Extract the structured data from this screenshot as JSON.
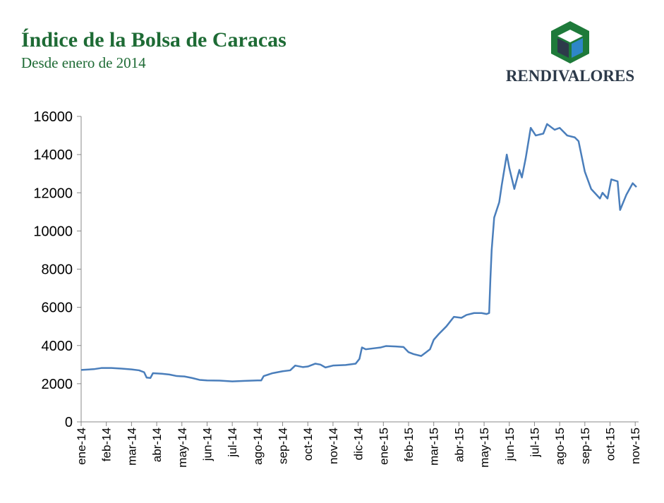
{
  "chart_data": {
    "type": "line",
    "title": "Índice de la Bolsa de Caracas",
    "subtitle": "Desde enero de 2014",
    "series": [
      {
        "color": "#4a7ebb",
        "x": [
          0,
          0.5,
          0.8,
          1.2,
          1.6,
          2.0,
          2.3,
          2.5,
          2.6,
          2.75,
          2.85,
          3.2,
          3.5,
          3.8,
          4.1,
          4.4,
          4.7,
          5.0,
          5.5,
          6.0,
          6.5,
          7.0,
          7.15,
          7.25,
          7.6,
          8.0,
          8.3,
          8.5,
          8.8,
          9.0,
          9.3,
          9.5,
          9.7,
          10.0,
          10.5,
          10.9,
          11.05,
          11.15,
          11.3,
          11.6,
          11.9,
          12.1,
          12.5,
          12.8,
          13.0,
          13.2,
          13.5,
          13.7,
          13.85,
          14.0,
          14.2,
          14.5,
          14.8,
          15.1,
          15.3,
          15.6,
          15.9,
          16.1,
          16.2,
          16.25,
          16.3,
          16.4,
          16.6,
          16.7,
          16.9,
          17.0,
          17.2,
          17.4,
          17.5,
          17.65,
          17.85,
          18.05,
          18.35,
          18.5,
          18.8,
          19.0,
          19.3,
          19.6,
          19.75,
          20.0,
          20.25,
          20.6,
          20.7,
          20.9,
          21.05,
          21.3,
          21.4,
          21.65,
          21.9,
          22.05
        ],
        "values": [
          2720,
          2760,
          2820,
          2820,
          2790,
          2750,
          2700,
          2600,
          2320,
          2300,
          2550,
          2520,
          2480,
          2400,
          2380,
          2300,
          2200,
          2170,
          2160,
          2120,
          2150,
          2170,
          2170,
          2400,
          2550,
          2650,
          2700,
          2950,
          2870,
          2900,
          3050,
          3000,
          2850,
          2950,
          2980,
          3050,
          3300,
          3900,
          3800,
          3850,
          3900,
          3970,
          3950,
          3920,
          3650,
          3550,
          3450,
          3650,
          3800,
          4300,
          4600,
          5000,
          5500,
          5450,
          5600,
          5700,
          5700,
          5650,
          5700,
          7500,
          9000,
          10700,
          11500,
          12400,
          14000,
          13300,
          12200,
          13200,
          12800,
          13800,
          15400,
          15000,
          15100,
          15600,
          15300,
          15400,
          15000,
          14900,
          14700,
          13100,
          12200,
          11700,
          12000,
          11700,
          12700,
          12600,
          11100,
          11900,
          12500,
          12300
        ]
      }
    ],
    "xlim": [
      0,
      22.05
    ],
    "xticks": [
      {
        "value": 0,
        "label": "ene-14"
      },
      {
        "value": 1,
        "label": "feb-14"
      },
      {
        "value": 2,
        "label": "mar-14"
      },
      {
        "value": 3,
        "label": "abr-14"
      },
      {
        "value": 4,
        "label": "may-14"
      },
      {
        "value": 5,
        "label": "jun-14"
      },
      {
        "value": 6,
        "label": "jul-14"
      },
      {
        "value": 7,
        "label": "ago-14"
      },
      {
        "value": 8,
        "label": "sep-14"
      },
      {
        "value": 9,
        "label": "oct-14"
      },
      {
        "value": 10,
        "label": "nov-14"
      },
      {
        "value": 11,
        "label": "dic-14"
      },
      {
        "value": 12,
        "label": "ene-15"
      },
      {
        "value": 13,
        "label": "feb-15"
      },
      {
        "value": 14,
        "label": "mar-15"
      },
      {
        "value": 15,
        "label": "abr-15"
      },
      {
        "value": 16,
        "label": "may-15"
      },
      {
        "value": 17,
        "label": "jun-15"
      },
      {
        "value": 18,
        "label": "jul-15"
      },
      {
        "value": 19,
        "label": "ago-15"
      },
      {
        "value": 20,
        "label": "sep-15"
      },
      {
        "value": 21,
        "label": "oct-15"
      },
      {
        "value": 22,
        "label": "nov-15"
      }
    ],
    "ylim": [
      0,
      16000
    ],
    "yticks": [
      0,
      2000,
      4000,
      6000,
      8000,
      10000,
      12000,
      14000,
      16000
    ],
    "grid": false
  },
  "logo": {
    "text": "RENDIVALORES"
  }
}
